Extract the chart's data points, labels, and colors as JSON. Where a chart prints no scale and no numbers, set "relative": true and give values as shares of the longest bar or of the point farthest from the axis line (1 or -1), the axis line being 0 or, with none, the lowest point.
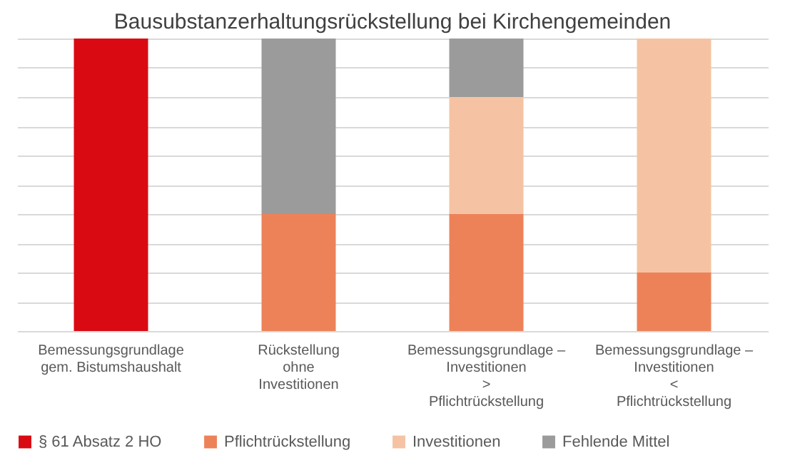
{
  "chart_data": {
    "type": "bar",
    "title": "Bausubstanzerhaltungsrückstellung bei Kirchengemeinden",
    "categories": [
      "Bemessungsgrundlage\ngem. Bistumshaushalt",
      "Rückstellung\nohne\nInvestitionen",
      "Bemessungsgrundlage –\nInvestitionen\n>\nPflichtrückstellung",
      "Bemessungsgrundlage –\nInvestitionen\n<\nPflichtrückstellung"
    ],
    "series": [
      {
        "name": "§ 61 Absatz 2 HO",
        "color": "#d90a12",
        "values": [
          1,
          null,
          null,
          null
        ]
      },
      {
        "name": "Pflichtrückstellung",
        "color": "#ed8259",
        "values": [
          null,
          0.4,
          0.4,
          0.2
        ]
      },
      {
        "name": "Investitionen",
        "color": "#f5c3a3",
        "values": [
          null,
          null,
          0.4,
          0.8
        ]
      },
      {
        "name": "Fehlende Mittel",
        "color": "#9b9b9b",
        "values": [
          null,
          0.6,
          0.2,
          null
        ]
      }
    ],
    "stacked": true,
    "relative": true,
    "grid": "y",
    "legend": "bottom"
  }
}
